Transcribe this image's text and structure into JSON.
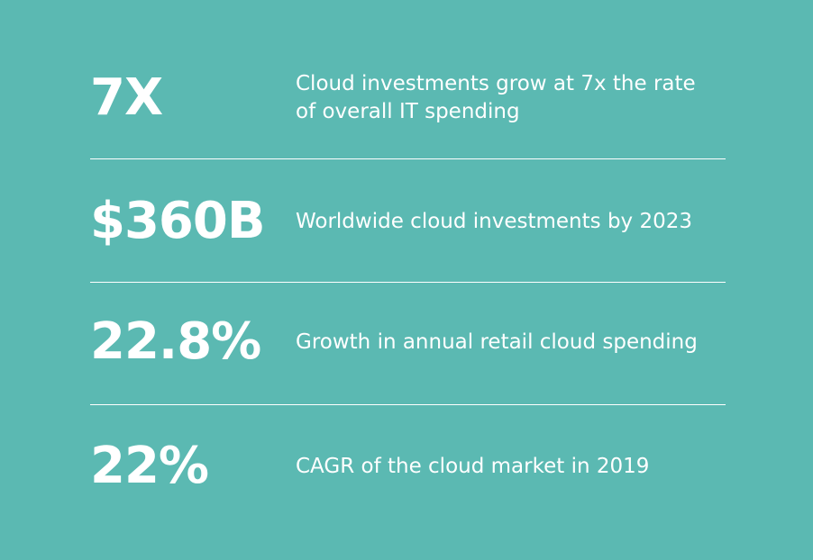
{
  "stats": [
    {
      "value": "7X",
      "description": "Cloud investments grow at 7x the rate\nof overall IT spending"
    },
    {
      "value": "$360B",
      "description": "Worldwide cloud investments by 2023"
    },
    {
      "value": "22.8%",
      "description": "Growth in annual retail cloud spending"
    },
    {
      "value": "22%",
      "description": "CAGR of the cloud market in 2019"
    }
  ],
  "colors": {
    "background": "#5bb9b2",
    "text": "#ffffff",
    "divider": "#ffffff"
  }
}
